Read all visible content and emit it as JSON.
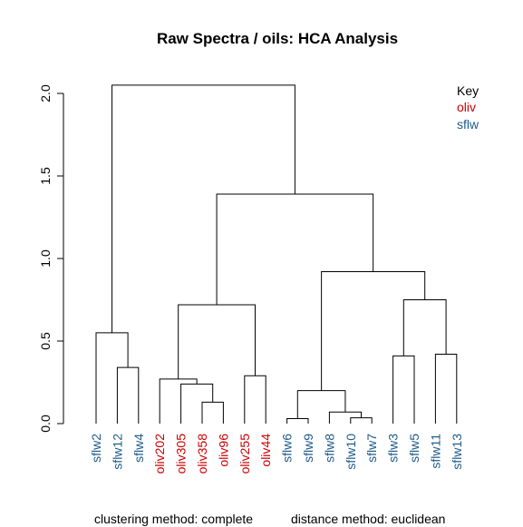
{
  "chart_data": {
    "type": "dendrogram",
    "title": "Raw Spectra / oils: HCA Analysis",
    "footer_left": "clustering method: complete",
    "footer_right": "distance method: euclidean",
    "y_ticks": [
      "0.0",
      "0.5",
      "1.0",
      "1.5",
      "2.0"
    ],
    "y_range": [
      0,
      2.0
    ],
    "grid": false,
    "legend": {
      "placement": "top-right",
      "title": "Key",
      "entries": [
        {
          "label": "oliv",
          "color": "#CC0000"
        },
        {
          "label": "sflw",
          "color": "#1F5C8A"
        }
      ]
    },
    "leaves": [
      {
        "label": "sflw2",
        "group": "sflw"
      },
      {
        "label": "sflw12",
        "group": "sflw"
      },
      {
        "label": "sflw4",
        "group": "sflw"
      },
      {
        "label": "oliv202",
        "group": "oliv"
      },
      {
        "label": "oliv305",
        "group": "oliv"
      },
      {
        "label": "oliv358",
        "group": "oliv"
      },
      {
        "label": "oliv96",
        "group": "oliv"
      },
      {
        "label": "oliv255",
        "group": "oliv"
      },
      {
        "label": "oliv44",
        "group": "oliv"
      },
      {
        "label": "sflw6",
        "group": "sflw"
      },
      {
        "label": "sflw9",
        "group": "sflw"
      },
      {
        "label": "sflw8",
        "group": "sflw"
      },
      {
        "label": "sflw10",
        "group": "sflw"
      },
      {
        "label": "sflw7",
        "group": "sflw"
      },
      {
        "label": "sflw3",
        "group": "sflw"
      },
      {
        "label": "sflw5",
        "group": "sflw"
      },
      {
        "label": "sflw11",
        "group": "sflw"
      },
      {
        "label": "sflw13",
        "group": "sflw"
      }
    ],
    "merges": [
      {
        "a": 1,
        "b": 2,
        "height": 0.34
      },
      {
        "a": 0,
        "b": "m0",
        "height": 0.55
      },
      {
        "a": 5,
        "b": 6,
        "height": 0.13
      },
      {
        "a": 4,
        "b": "m2",
        "height": 0.24
      },
      {
        "a": 3,
        "b": "m3",
        "height": 0.27
      },
      {
        "a": 7,
        "b": 8,
        "height": 0.29
      },
      {
        "a": "m4",
        "b": "m5",
        "height": 0.72
      },
      {
        "a": 12,
        "b": 13,
        "height": 0.035
      },
      {
        "a": 11,
        "b": "m7",
        "height": 0.07
      },
      {
        "a": 9,
        "b": 10,
        "height": 0.03
      },
      {
        "a": "m9",
        "b": "m8",
        "height": 0.2
      },
      {
        "a": 14,
        "b": 15,
        "height": 0.41
      },
      {
        "a": 16,
        "b": 17,
        "height": 0.42
      },
      {
        "a": "m11",
        "b": "m12",
        "height": 0.75
      },
      {
        "a": "m10",
        "b": "m13",
        "height": 0.92
      },
      {
        "a": "m6",
        "b": "m14",
        "height": 1.39
      },
      {
        "a": "m1",
        "b": "m15",
        "height": 2.05
      }
    ]
  }
}
